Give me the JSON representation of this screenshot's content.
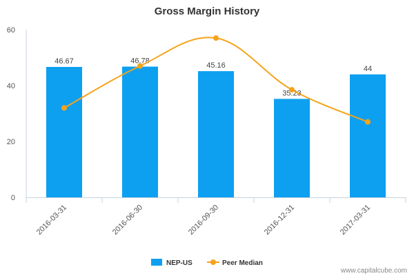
{
  "chart_data": {
    "type": "bar",
    "title": "Gross Margin History",
    "categories": [
      "2016-03-31",
      "2016-06-30",
      "2016-09-30",
      "2016-12-31",
      "2017-03-31"
    ],
    "ylim": [
      0,
      60
    ],
    "yticks": [
      0,
      20,
      40,
      60
    ],
    "grid": false,
    "legend_position": "bottom",
    "series": [
      {
        "name": "NEP-US",
        "type": "bar",
        "color": "#0ea0f0",
        "values": [
          46.67,
          46.78,
          45.16,
          35.23,
          44
        ],
        "labels": [
          "46.67",
          "46.78",
          "45.16",
          "35.23",
          "44"
        ]
      },
      {
        "name": "Peer Median",
        "type": "line",
        "color": "#f5a31a",
        "values": [
          32,
          47,
          57,
          38.5,
          27
        ]
      }
    ]
  },
  "footer": {
    "credit": "www.capitalcube.com"
  }
}
